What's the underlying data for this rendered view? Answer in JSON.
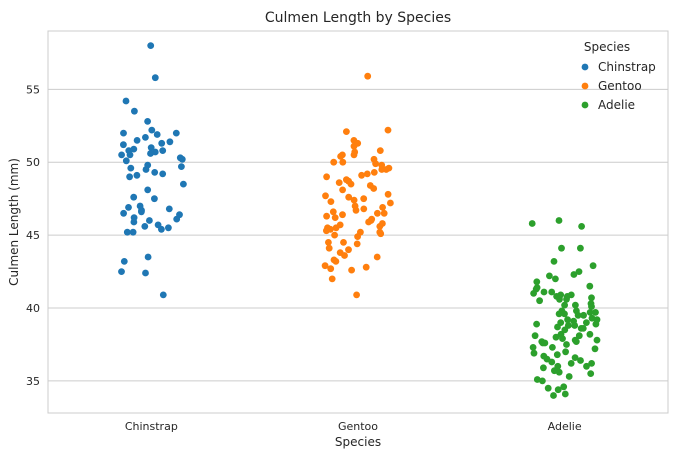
{
  "chart_data": {
    "type": "scatter",
    "subtype": "strip",
    "title": "Culmen Length by Species",
    "xlabel": "Species",
    "ylabel": "Culmen Length (mm)",
    "categories": [
      "Chinstrap",
      "Gentoo",
      "Adelie"
    ],
    "ylim": [
      32.8,
      59.0
    ],
    "yticks": [
      35,
      40,
      45,
      50,
      55
    ],
    "grid": true,
    "legend": {
      "title": "Species",
      "placement": "top-right"
    },
    "series": [
      {
        "name": "Chinstrap",
        "color": "#1f77b4",
        "values": [
          58.0,
          55.8,
          54.2,
          53.5,
          52.8,
          52.2,
          52.0,
          52.0,
          51.9,
          51.7,
          51.5,
          51.4,
          51.3,
          51.2,
          51.0,
          50.9,
          50.8,
          50.8,
          50.7,
          50.6,
          50.5,
          50.5,
          50.3,
          50.2,
          50.1,
          49.8,
          49.7,
          49.6,
          49.5,
          49.3,
          49.2,
          49.1,
          49.0,
          48.5,
          48.1,
          47.6,
          47.5,
          47.0,
          46.9,
          46.8,
          46.7,
          46.6,
          46.5,
          46.4,
          46.2,
          46.1,
          46.0,
          45.9,
          45.7,
          45.6,
          45.5,
          45.4,
          45.2,
          45.2,
          43.5,
          43.2,
          42.5,
          42.4,
          40.9
        ]
      },
      {
        "name": "Gentoo",
        "color": "#ff7f0e",
        "values": [
          55.9,
          52.2,
          52.1,
          51.5,
          51.3,
          51.1,
          50.8,
          50.7,
          50.5,
          50.5,
          50.4,
          50.2,
          50.0,
          50.0,
          49.9,
          49.8,
          49.6,
          49.5,
          49.5,
          49.3,
          49.2,
          49.1,
          49.0,
          48.8,
          48.7,
          48.6,
          48.5,
          48.4,
          48.2,
          48.1,
          47.8,
          47.7,
          47.6,
          47.5,
          47.4,
          47.3,
          47.2,
          47.0,
          46.9,
          46.8,
          46.7,
          46.6,
          46.5,
          46.5,
          46.4,
          46.3,
          46.2,
          46.1,
          46.0,
          45.9,
          45.8,
          45.7,
          45.6,
          45.5,
          45.5,
          45.4,
          45.3,
          45.2,
          45.2,
          45.1,
          45.0,
          44.9,
          44.5,
          44.5,
          44.4,
          44.1,
          44.0,
          43.8,
          43.6,
          43.5,
          43.3,
          43.2,
          42.9,
          42.8,
          42.7,
          42.6,
          42.0,
          40.9
        ]
      },
      {
        "name": "Adelie",
        "color": "#2ca02c",
        "values": [
          46.0,
          45.8,
          45.6,
          44.1,
          44.1,
          43.2,
          42.9,
          42.5,
          42.3,
          42.2,
          42.0,
          41.8,
          41.5,
          41.4,
          41.3,
          41.1,
          41.1,
          41.0,
          40.9,
          40.9,
          40.8,
          40.8,
          40.7,
          40.6,
          40.6,
          40.5,
          40.3,
          40.2,
          40.2,
          40.1,
          39.8,
          39.8,
          39.7,
          39.7,
          39.6,
          39.6,
          39.5,
          39.5,
          39.3,
          39.2,
          39.2,
          39.1,
          39.0,
          39.0,
          38.9,
          38.9,
          38.8,
          38.8,
          38.7,
          38.6,
          38.6,
          38.5,
          38.2,
          38.2,
          38.1,
          38.1,
          38.0,
          37.9,
          37.8,
          37.8,
          37.7,
          37.7,
          37.6,
          37.6,
          37.5,
          37.3,
          37.3,
          37.2,
          37.0,
          36.9,
          36.8,
          36.7,
          36.6,
          36.5,
          36.4,
          36.3,
          36.2,
          36.2,
          36.0,
          36.0,
          35.9,
          35.7,
          35.6,
          35.5,
          35.3,
          35.1,
          35.0,
          34.6,
          34.5,
          34.4,
          34.1,
          34.0
        ]
      }
    ]
  }
}
